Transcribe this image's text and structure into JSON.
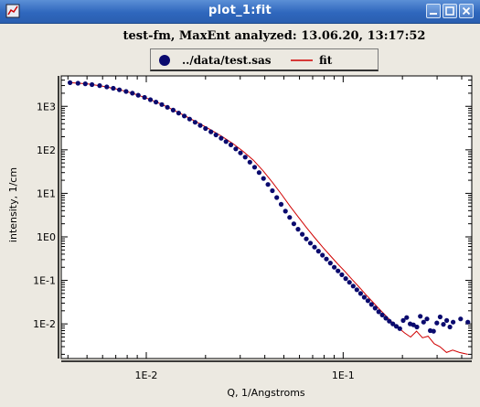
{
  "window": {
    "title": "plot_1:fit",
    "icons": [
      "app-icon",
      "minimize-icon",
      "maximize-icon",
      "close-icon"
    ]
  },
  "plot": {
    "title": "test-fm, MaxEnt analyzed: 13.06.20, 13:17:52",
    "legend": {
      "data_label": "../data/test.sas",
      "fit_label": "fit"
    }
  },
  "chart_data": {
    "type": "scatter",
    "xlabel": "Q, 1/Angstroms",
    "ylabel": "intensity, 1/cm",
    "xscale": "log",
    "yscale": "log",
    "xlim": [
      0.0037,
      0.45
    ],
    "ylim": [
      0.0016,
      5000
    ],
    "x_ticks": [
      "1E-2",
      "1E-1"
    ],
    "y_ticks": [
      "1E3",
      "1E2",
      "1E1",
      "1E0",
      "1E-1",
      "1E-2"
    ],
    "series": [
      {
        "name": "../data/test.sas",
        "style": "points",
        "color": "#0a0a6e",
        "x": [
          0.0041,
          0.0045,
          0.0049,
          0.0053,
          0.0058,
          0.0063,
          0.0068,
          0.0073,
          0.0079,
          0.0085,
          0.0091,
          0.0098,
          0.0105,
          0.0112,
          0.012,
          0.0128,
          0.0137,
          0.0146,
          0.0156,
          0.0166,
          0.0177,
          0.0188,
          0.02,
          0.0213,
          0.0226,
          0.024,
          0.0254,
          0.0269,
          0.0285,
          0.0301,
          0.0318,
          0.0336,
          0.0355,
          0.0374,
          0.0394,
          0.0415,
          0.0437,
          0.046,
          0.0484,
          0.0509,
          0.0535,
          0.0562,
          0.059,
          0.062,
          0.065,
          0.0682,
          0.0715,
          0.0749,
          0.0785,
          0.0822,
          0.0861,
          0.0901,
          0.0942,
          0.0985,
          0.103,
          0.1076,
          0.1124,
          0.1174,
          0.1226,
          0.128,
          0.1336,
          0.1393,
          0.1453,
          0.1515,
          0.158,
          0.1647,
          0.1716,
          0.1788,
          0.1862,
          0.1939,
          0.2019,
          0.2102,
          0.2188,
          0.2276,
          0.2368,
          0.2464,
          0.2562,
          0.2664,
          0.277,
          0.2879,
          0.2992,
          0.3109,
          0.323,
          0.3356,
          0.3485,
          0.3619,
          0.395,
          0.43
        ],
        "y": [
          3500,
          3400,
          3300,
          3150,
          3000,
          2800,
          2600,
          2400,
          2200,
          2000,
          1800,
          1600,
          1420,
          1250,
          1100,
          950,
          820,
          700,
          600,
          510,
          430,
          365,
          310,
          260,
          220,
          185,
          155,
          130,
          105,
          85,
          68,
          52,
          40,
          30,
          22,
          16,
          11.5,
          8.0,
          5.6,
          3.9,
          2.8,
          2.0,
          1.5,
          1.15,
          0.9,
          0.72,
          0.58,
          0.47,
          0.38,
          0.31,
          0.25,
          0.2,
          0.165,
          0.135,
          0.11,
          0.09,
          0.074,
          0.061,
          0.05,
          0.041,
          0.034,
          0.028,
          0.023,
          0.019,
          0.016,
          0.0135,
          0.0115,
          0.01,
          0.0088,
          0.0078,
          0.012,
          0.014,
          0.01,
          0.0095,
          0.0085,
          0.015,
          0.011,
          0.013,
          0.007,
          0.0068,
          0.0105,
          0.0145,
          0.0098,
          0.012,
          0.0085,
          0.011,
          0.013,
          0.011
        ]
      },
      {
        "name": "fit",
        "style": "line",
        "color": "#d00000",
        "x": [
          0.0041,
          0.005,
          0.006,
          0.0072,
          0.0085,
          0.01,
          0.0118,
          0.0138,
          0.016,
          0.0185,
          0.0212,
          0.0242,
          0.0275,
          0.0311,
          0.035,
          0.0392,
          0.0437,
          0.0486,
          0.0538,
          0.0594,
          0.0654,
          0.0718,
          0.0787,
          0.086,
          0.0938,
          0.1021,
          0.111,
          0.1205,
          0.1305,
          0.1412,
          0.1525,
          0.1645,
          0.1772,
          0.1907,
          0.205,
          0.2201,
          0.236,
          0.253,
          0.27,
          0.29,
          0.31,
          0.335,
          0.36,
          0.39,
          0.43
        ],
        "y": [
          3500,
          3300,
          2900,
          2450,
          2000,
          1550,
          1150,
          820,
          580,
          410,
          290,
          205,
          140,
          92,
          58,
          33,
          18,
          9.5,
          5.0,
          2.8,
          1.6,
          0.95,
          0.58,
          0.37,
          0.24,
          0.16,
          0.105,
          0.07,
          0.047,
          0.032,
          0.022,
          0.0155,
          0.011,
          0.0082,
          0.0062,
          0.005,
          0.0068,
          0.0048,
          0.0052,
          0.0035,
          0.003,
          0.0022,
          0.0025,
          0.0022,
          0.002
        ]
      }
    ]
  }
}
